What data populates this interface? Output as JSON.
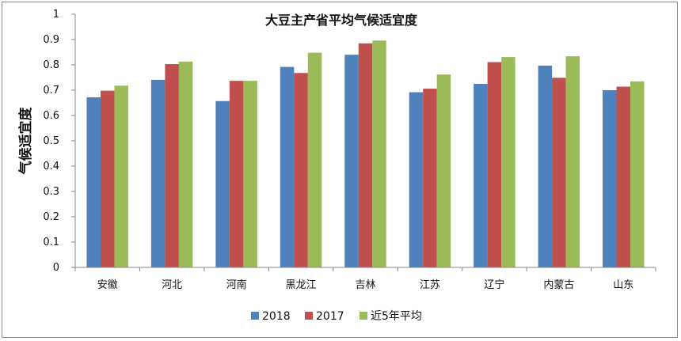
{
  "chart_data": {
    "type": "bar",
    "title": "大豆主产省平均气候适宜度",
    "xlabel": "",
    "ylabel": "气候适宜度",
    "ylim": [
      0,
      1
    ],
    "y_ticks": [
      "0",
      "0.1",
      "0.2",
      "0.3",
      "0.4",
      "0.5",
      "0.6",
      "0.7",
      "0.8",
      "0.9",
      "1"
    ],
    "categories": [
      "安徽",
      "河北",
      "河南",
      "黑龙江",
      "吉林",
      "江苏",
      "辽宁",
      "内蒙古",
      "山东"
    ],
    "series": [
      {
        "name": "2018",
        "color": "#4F81BD",
        "values": [
          0.672,
          0.741,
          0.657,
          0.792,
          0.84,
          0.692,
          0.725,
          0.797,
          0.7
        ]
      },
      {
        "name": "2017",
        "color": "#C0504D",
        "values": [
          0.698,
          0.803,
          0.737,
          0.768,
          0.885,
          0.706,
          0.811,
          0.749,
          0.714
        ]
      },
      {
        "name": "近5年平均",
        "color": "#9BBB59",
        "values": [
          0.718,
          0.813,
          0.737,
          0.848,
          0.896,
          0.762,
          0.831,
          0.834,
          0.735
        ]
      }
    ],
    "grid": false,
    "legend": "bottom"
  }
}
